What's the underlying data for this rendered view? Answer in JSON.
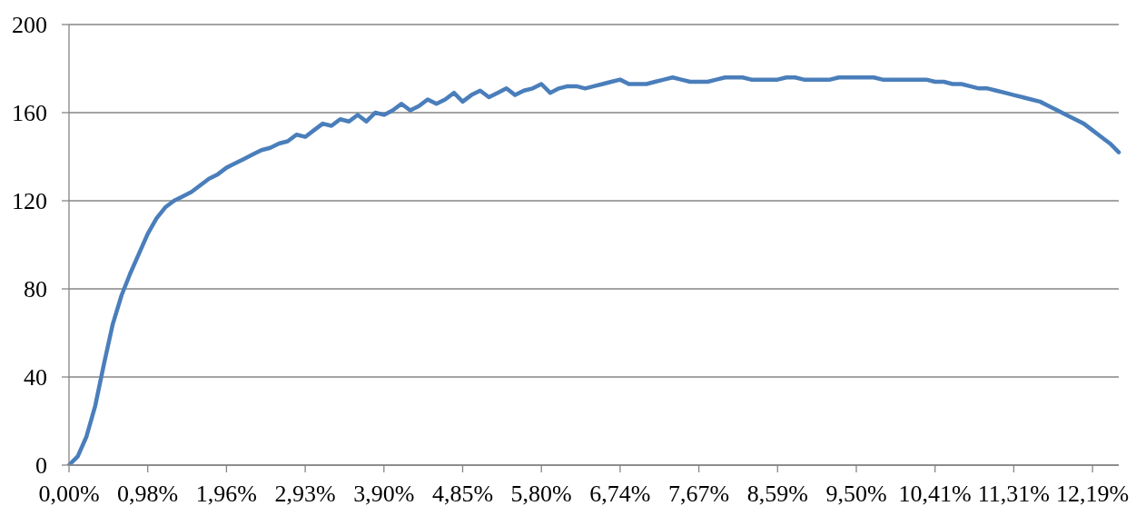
{
  "chart_data": {
    "type": "line",
    "categories": [
      "0,00%",
      null,
      null,
      null,
      null,
      null,
      null,
      null,
      null,
      "0,98%",
      null,
      null,
      null,
      null,
      null,
      null,
      null,
      null,
      "1,96%",
      null,
      null,
      null,
      null,
      null,
      null,
      null,
      null,
      "2,93%",
      null,
      null,
      null,
      null,
      null,
      null,
      null,
      null,
      "3,90%",
      null,
      null,
      null,
      null,
      null,
      null,
      null,
      null,
      "4,85%",
      null,
      null,
      null,
      null,
      null,
      null,
      null,
      null,
      "5,80%",
      null,
      null,
      null,
      null,
      null,
      null,
      null,
      null,
      "6,74%",
      null,
      null,
      null,
      null,
      null,
      null,
      null,
      null,
      "7,67%",
      null,
      null,
      null,
      null,
      null,
      null,
      null,
      null,
      "8,59%",
      null,
      null,
      null,
      null,
      null,
      null,
      null,
      null,
      "9,50%",
      null,
      null,
      null,
      null,
      null,
      null,
      null,
      null,
      "10,41%",
      null,
      null,
      null,
      null,
      null,
      null,
      null,
      null,
      "11,31%",
      null,
      null,
      null,
      null,
      null,
      null,
      null,
      null,
      "12,19%",
      null,
      null,
      null
    ],
    "series": [
      {
        "color": "#4a7ebb",
        "values": [
          0,
          4,
          13,
          27,
          46,
          64,
          77,
          87,
          96,
          105,
          112,
          117,
          120,
          122,
          124,
          127,
          130,
          132,
          135,
          137,
          139,
          141,
          143,
          144,
          146,
          147,
          150,
          149,
          152,
          155,
          154,
          157,
          156,
          159,
          156,
          160,
          159,
          161,
          164,
          161,
          163,
          166,
          164,
          166,
          169,
          165,
          168,
          170,
          167,
          169,
          171,
          168,
          170,
          171,
          173,
          169,
          171,
          172,
          172,
          171,
          172,
          173,
          174,
          175,
          173,
          173,
          173,
          174,
          175,
          176,
          175,
          174,
          174,
          174,
          175,
          176,
          176,
          176,
          175,
          175,
          175,
          175,
          176,
          176,
          175,
          175,
          175,
          175,
          176,
          176,
          176,
          176,
          176,
          175,
          175,
          175,
          175,
          175,
          175,
          174,
          174,
          173,
          173,
          172,
          171,
          171,
          170,
          169,
          168,
          167,
          166,
          165,
          163,
          161,
          159,
          157,
          155,
          152,
          149,
          146,
          142
        ]
      }
    ],
    "ylim": [
      0,
      200
    ],
    "yticks": [
      0,
      40,
      80,
      120,
      160,
      200
    ],
    "grid": "y",
    "marker": "none",
    "line_style": "solid"
  }
}
